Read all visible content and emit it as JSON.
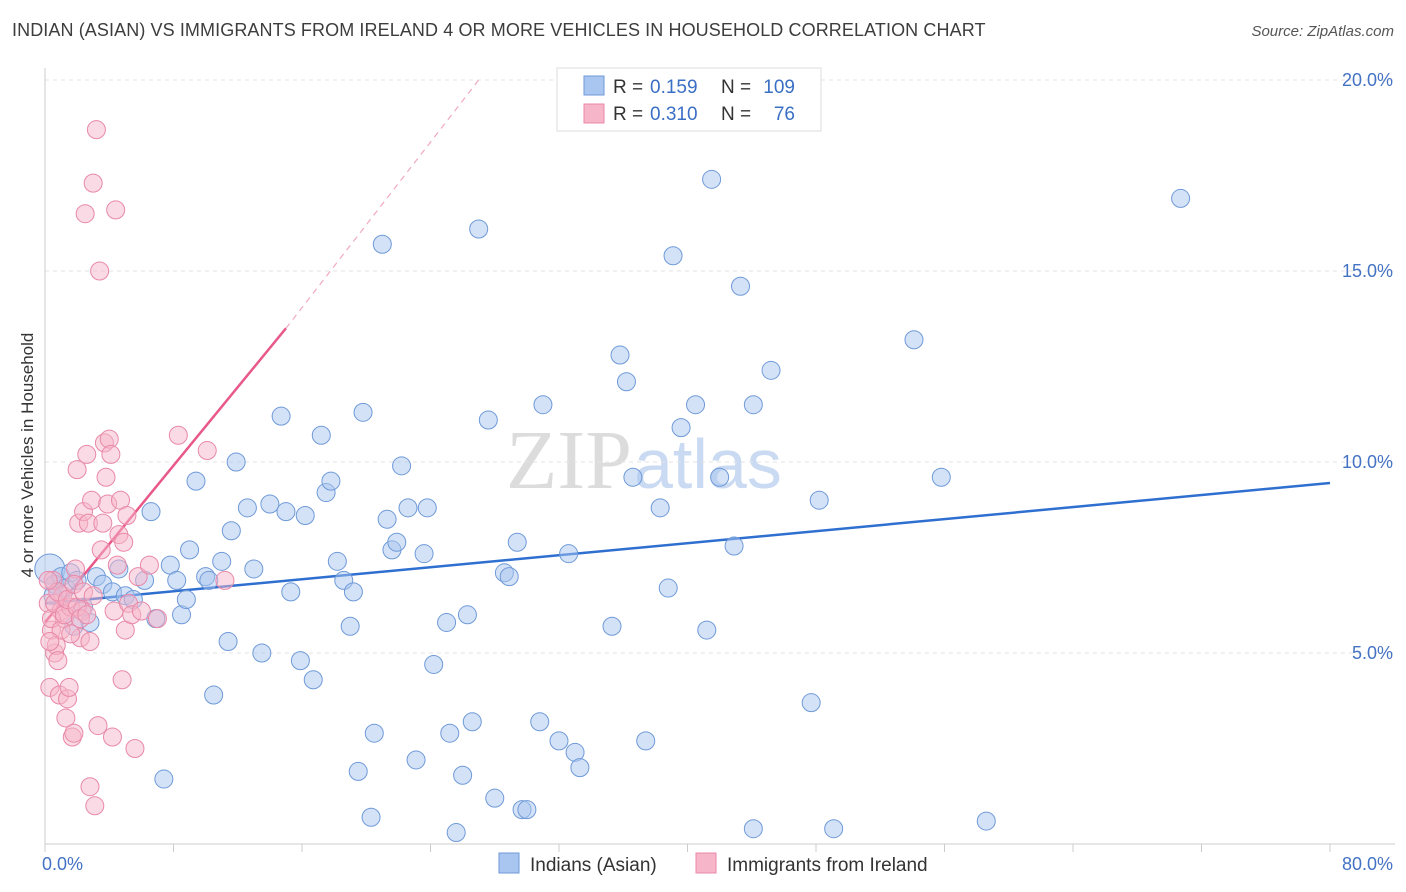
{
  "title": "INDIAN (ASIAN) VS IMMIGRANTS FROM IRELAND 4 OR MORE VEHICLES IN HOUSEHOLD CORRELATION CHART",
  "source": "Source: ZipAtlas.com",
  "watermark": {
    "zip": "ZIP",
    "atlas": "atlas"
  },
  "legend_box": {
    "rows": [
      {
        "r_label": "R =",
        "r_value": "0.159",
        "n_label": "N =",
        "n_value": "109",
        "color": "#a9c6f0"
      },
      {
        "r_label": "R =",
        "r_value": "0.310",
        "n_label": "N =",
        "n_value": "76",
        "color": "#f6b5c9"
      }
    ]
  },
  "bottom_legend": [
    {
      "label": "Indians (Asian)",
      "color": "#a9c6f0"
    },
    {
      "label": "Immigrants from Ireland",
      "color": "#f6b5c9"
    }
  ],
  "chart_data": {
    "type": "scatter",
    "title": "INDIAN (ASIAN) VS IMMIGRANTS FROM IRELAND 4 OR MORE VEHICLES IN HOUSEHOLD CORRELATION CHART",
    "xlabel": "",
    "ylabel": "4 or more Vehicles in Household",
    "xlim": [
      0,
      80
    ],
    "ylim": [
      0,
      20
    ],
    "x_tick_labels": [
      "0.0%",
      "80.0%"
    ],
    "y_tick_labels": [
      "5.0%",
      "10.0%",
      "15.0%",
      "20.0%"
    ],
    "y_ticks": [
      5,
      10,
      15,
      20
    ],
    "grid": true,
    "legend_position": "top-center",
    "series": [
      {
        "name": "Indians (Asian)",
        "color": "#a9c6f0",
        "stroke": "#6f9ad8",
        "trend": {
          "x": [
            0,
            80
          ],
          "y": [
            6.3,
            9.45
          ],
          "color": "#2e6fd0",
          "style": "solid"
        },
        "points": [
          [
            0.3,
            7.2
          ],
          [
            0.6,
            6.8
          ],
          [
            1.0,
            7.0
          ],
          [
            1.3,
            6.7
          ],
          [
            1.6,
            7.1
          ],
          [
            2.0,
            6.9
          ],
          [
            2.4,
            6.2
          ],
          [
            2.8,
            5.8
          ],
          [
            3.2,
            7.0
          ],
          [
            3.6,
            6.8
          ],
          [
            4.2,
            6.6
          ],
          [
            4.6,
            7.2
          ],
          [
            5.0,
            6.5
          ],
          [
            5.5,
            6.4
          ],
          [
            6.2,
            6.9
          ],
          [
            6.6,
            8.7
          ],
          [
            6.9,
            5.9
          ],
          [
            7.4,
            1.7
          ],
          [
            7.8,
            7.3
          ],
          [
            8.2,
            6.9
          ],
          [
            8.5,
            6.0
          ],
          [
            8.8,
            6.4
          ],
          [
            9.0,
            7.7
          ],
          [
            9.4,
            9.5
          ],
          [
            10.0,
            7.0
          ],
          [
            10.2,
            6.9
          ],
          [
            10.5,
            3.9
          ],
          [
            11.0,
            7.4
          ],
          [
            11.4,
            5.3
          ],
          [
            11.6,
            8.2
          ],
          [
            11.9,
            10.0
          ],
          [
            12.6,
            8.8
          ],
          [
            13.0,
            7.2
          ],
          [
            13.5,
            5.0
          ],
          [
            14.0,
            8.9
          ],
          [
            14.7,
            11.2
          ],
          [
            15.0,
            8.7
          ],
          [
            15.3,
            6.6
          ],
          [
            15.9,
            4.8
          ],
          [
            16.2,
            8.6
          ],
          [
            16.7,
            4.3
          ],
          [
            17.2,
            10.7
          ],
          [
            17.5,
            9.2
          ],
          [
            17.8,
            9.5
          ],
          [
            18.2,
            7.4
          ],
          [
            18.6,
            6.9
          ],
          [
            19.0,
            5.7
          ],
          [
            19.2,
            6.6
          ],
          [
            19.5,
            1.9
          ],
          [
            19.8,
            11.3
          ],
          [
            20.3,
            0.7
          ],
          [
            20.5,
            2.9
          ],
          [
            21.0,
            15.7
          ],
          [
            21.3,
            8.5
          ],
          [
            21.6,
            7.7
          ],
          [
            21.9,
            7.9
          ],
          [
            22.2,
            9.9
          ],
          [
            22.6,
            8.8
          ],
          [
            23.1,
            2.2
          ],
          [
            23.6,
            7.6
          ],
          [
            23.8,
            8.8
          ],
          [
            24.2,
            4.7
          ],
          [
            25.0,
            5.8
          ],
          [
            25.2,
            2.9
          ],
          [
            25.6,
            0.3
          ],
          [
            26.0,
            1.8
          ],
          [
            26.3,
            6.0
          ],
          [
            26.6,
            3.2
          ],
          [
            27.0,
            16.1
          ],
          [
            27.6,
            11.1
          ],
          [
            28.0,
            1.2
          ],
          [
            28.6,
            7.1
          ],
          [
            28.9,
            7.0
          ],
          [
            29.4,
            7.9
          ],
          [
            29.7,
            0.9
          ],
          [
            30.0,
            0.9
          ],
          [
            30.8,
            3.2
          ],
          [
            31.0,
            11.5
          ],
          [
            32.0,
            2.7
          ],
          [
            32.6,
            7.6
          ],
          [
            33.0,
            2.4
          ],
          [
            33.3,
            2.0
          ],
          [
            35.3,
            5.7
          ],
          [
            35.8,
            12.8
          ],
          [
            36.2,
            12.1
          ],
          [
            36.6,
            9.6
          ],
          [
            37.4,
            2.7
          ],
          [
            38.3,
            8.8
          ],
          [
            38.8,
            6.7
          ],
          [
            39.1,
            15.4
          ],
          [
            39.6,
            10.9
          ],
          [
            40.5,
            11.5
          ],
          [
            41.2,
            5.6
          ],
          [
            41.5,
            17.4
          ],
          [
            42.0,
            9.6
          ],
          [
            42.9,
            7.8
          ],
          [
            43.3,
            14.6
          ],
          [
            44.1,
            0.4
          ],
          [
            44.1,
            11.5
          ],
          [
            45.2,
            12.4
          ],
          [
            47.7,
            3.7
          ],
          [
            48.2,
            9.0
          ],
          [
            49.1,
            0.4
          ],
          [
            54.1,
            13.2
          ],
          [
            55.8,
            9.6
          ],
          [
            58.6,
            0.6
          ],
          [
            70.7,
            16.9
          ],
          [
            0.5,
            6.5
          ],
          [
            1.8,
            5.7
          ]
        ]
      },
      {
        "name": "Immigrants from Ireland",
        "color": "#f6b5c9",
        "stroke": "#e889a8",
        "trend": {
          "x": [
            0,
            15
          ],
          "y": [
            5.8,
            13.5
          ],
          "x_dash_end": 27,
          "y_dash_end": 20,
          "color": "#e8588a",
          "style": "solid+dashed"
        },
        "points": [
          [
            0.2,
            6.3
          ],
          [
            0.3,
            4.1
          ],
          [
            0.4,
            5.6
          ],
          [
            0.5,
            6.9
          ],
          [
            0.6,
            5.0
          ],
          [
            0.7,
            5.2
          ],
          [
            0.8,
            4.8
          ],
          [
            0.9,
            3.9
          ],
          [
            1.0,
            6.1
          ],
          [
            1.1,
            6.5
          ],
          [
            1.2,
            5.9
          ],
          [
            1.3,
            3.3
          ],
          [
            1.4,
            3.8
          ],
          [
            1.5,
            4.1
          ],
          [
            1.6,
            6.2
          ],
          [
            1.7,
            2.8
          ],
          [
            1.8,
            2.9
          ],
          [
            1.9,
            7.2
          ],
          [
            2.0,
            9.8
          ],
          [
            2.1,
            8.4
          ],
          [
            2.2,
            5.4
          ],
          [
            2.3,
            6.1
          ],
          [
            2.4,
            8.7
          ],
          [
            2.5,
            16.5
          ],
          [
            2.6,
            10.2
          ],
          [
            2.7,
            8.4
          ],
          [
            2.8,
            1.5
          ],
          [
            2.9,
            9.0
          ],
          [
            3.0,
            17.3
          ],
          [
            3.1,
            1.0
          ],
          [
            3.2,
            18.7
          ],
          [
            3.3,
            3.1
          ],
          [
            3.4,
            15.0
          ],
          [
            3.5,
            7.7
          ],
          [
            3.6,
            8.4
          ],
          [
            3.7,
            10.5
          ],
          [
            3.8,
            9.6
          ],
          [
            3.9,
            8.9
          ],
          [
            4.0,
            10.6
          ],
          [
            4.1,
            10.2
          ],
          [
            4.2,
            2.8
          ],
          [
            4.3,
            6.1
          ],
          [
            4.4,
            16.6
          ],
          [
            4.5,
            7.3
          ],
          [
            4.6,
            8.1
          ],
          [
            4.7,
            9.0
          ],
          [
            4.8,
            4.3
          ],
          [
            4.9,
            7.9
          ],
          [
            5.0,
            5.6
          ],
          [
            5.1,
            8.6
          ],
          [
            5.2,
            6.3
          ],
          [
            5.4,
            6.0
          ],
          [
            5.6,
            2.5
          ],
          [
            5.8,
            7.0
          ],
          [
            6.0,
            6.1
          ],
          [
            6.5,
            7.3
          ],
          [
            7.0,
            5.9
          ],
          [
            8.3,
            10.7
          ],
          [
            10.1,
            10.3
          ],
          [
            11.2,
            6.9
          ],
          [
            0.4,
            5.9
          ],
          [
            0.6,
            6.3
          ],
          [
            0.8,
            6.6
          ],
          [
            1.0,
            5.6
          ],
          [
            1.2,
            6.0
          ],
          [
            1.4,
            6.4
          ],
          [
            1.6,
            5.5
          ],
          [
            1.8,
            6.8
          ],
          [
            2.0,
            6.2
          ],
          [
            2.2,
            5.9
          ],
          [
            2.4,
            6.6
          ],
          [
            2.6,
            6.0
          ],
          [
            2.8,
            5.3
          ],
          [
            3.0,
            6.5
          ],
          [
            0.2,
            6.9
          ],
          [
            0.3,
            5.3
          ]
        ]
      }
    ]
  }
}
